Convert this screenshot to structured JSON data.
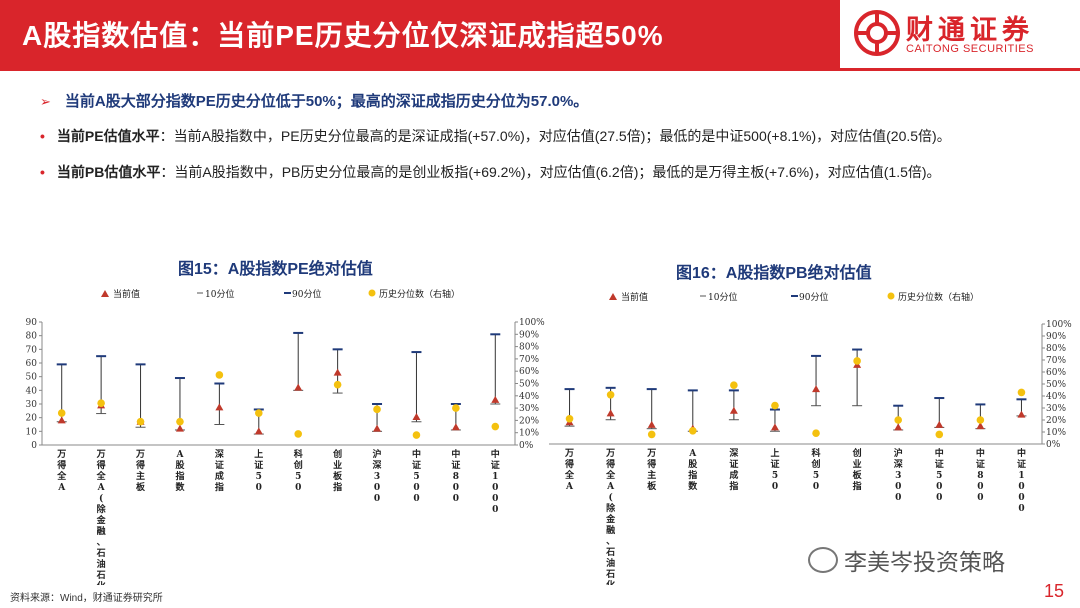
{
  "header": {
    "title": "A股指数估值：当前PE历史分位仅深证成指超50%",
    "logo_name": "财通证券",
    "logo_sub": "CAITONG SECURITIES",
    "colors": {
      "brand_red": "#d9252b",
      "title_blue": "#1f3a7a"
    }
  },
  "bullets": {
    "main": "当前A股大部分指数PE历史分位低于50%；最高的深证成指历史分位为57.0%。",
    "pe_label": "当前PE估值水平",
    "pe_text": "：当前A股指数中，PE历史分位最高的是深证成指(+57.0%)，对应估值(27.5倍)；最低的是中证500(+8.1%)，对应估值(20.5倍)。",
    "pb_label": "当前PB估值水平",
    "pb_text": "：当前A股指数中，PB历史分位最高的是创业板指(+69.2%)，对应估值(6.2倍)；最低的是万得主板(+7.6%)，对应估值(1.5倍)。"
  },
  "chart_data": [
    {
      "type": "scatter",
      "title": "图15：A股指数PE绝对估值",
      "legend": [
        "当前值",
        "10分位",
        "90分位",
        "历史分位数（右轴）"
      ],
      "categories": [
        "万得全A",
        "万得全A(除金融、石油石化)",
        "万得主板",
        "A股指数",
        "深证成指",
        "上证50",
        "科创50",
        "创业板指",
        "沪深300",
        "中证500",
        "中证800",
        "中证1000"
      ],
      "left_axis": {
        "ylim": [
          0,
          90
        ],
        "ticks": [
          0,
          10,
          20,
          30,
          40,
          50,
          60,
          70,
          80,
          90
        ]
      },
      "right_axis": {
        "ylim": [
          0,
          100
        ],
        "ticks": [
          "0%",
          "10%",
          "20%",
          "30%",
          "40%",
          "50%",
          "60%",
          "70%",
          "80%",
          "90%",
          "100%"
        ]
      },
      "series": [
        {
          "name": "当前值",
          "values": [
            18,
            29,
            17,
            12,
            27.5,
            10,
            42,
            53,
            12,
            20.5,
            13,
            33
          ]
        },
        {
          "name": "10分位",
          "values": [
            17,
            23,
            13,
            11,
            15,
            8,
            40,
            38,
            10,
            17,
            11,
            30
          ]
        },
        {
          "name": "90分位",
          "values": [
            59,
            65,
            59,
            49,
            45,
            26,
            82,
            70,
            30,
            68,
            30,
            81
          ]
        },
        {
          "name": "历史分位数（右轴）",
          "values": [
            26,
            34,
            19,
            19,
            57,
            26,
            9,
            49,
            29,
            8.1,
            30,
            15
          ]
        }
      ]
    },
    {
      "type": "scatter",
      "title": "图16：A股指数PB绝对估值",
      "legend": [
        "当前值",
        "10分位",
        "90分位",
        "历史分位数（右轴）"
      ],
      "categories": [
        "万得全A",
        "万得全A(除金融、石油石化)",
        "万得主板",
        "A股指数",
        "深证成指",
        "上证50",
        "科创50",
        "创业板指",
        "沪深300",
        "中证500",
        "中证800",
        "中证1000"
      ],
      "right_axis": {
        "ylim": [
          0,
          100
        ],
        "ticks": [
          "0%",
          "10%",
          "20%",
          "30%",
          "40%",
          "50%",
          "60%",
          "70%",
          "80%",
          "90%",
          "100%"
        ]
      },
      "series": [
        {
          "name": "当前值",
          "values": [
            1.7,
            2.4,
            1.5,
            1.2,
            2.6,
            1.3,
            4.3,
            6.2,
            1.3,
            1.5,
            1.4,
            2.3
          ]
        },
        {
          "name": "10分位",
          "values": [
            1.4,
            1.9,
            1.2,
            1.0,
            1.9,
            1.0,
            3.0,
            3.0,
            1.1,
            1.3,
            1.2,
            2.2
          ]
        },
        {
          "name": "90分位",
          "values": [
            4.3,
            4.4,
            4.3,
            4.2,
            4.2,
            2.7,
            6.9,
            7.4,
            3.0,
            3.6,
            3.1,
            3.5
          ]
        },
        {
          "name": "历史分位数（右轴）",
          "values": [
            21,
            41,
            8,
            11,
            49,
            32,
            9,
            69.2,
            20,
            8,
            20,
            43
          ]
        }
      ]
    }
  ],
  "footer": {
    "source": "资料来源：Wind，财通证券研究所",
    "watermark": "李美岑投资策略",
    "page": "15"
  }
}
